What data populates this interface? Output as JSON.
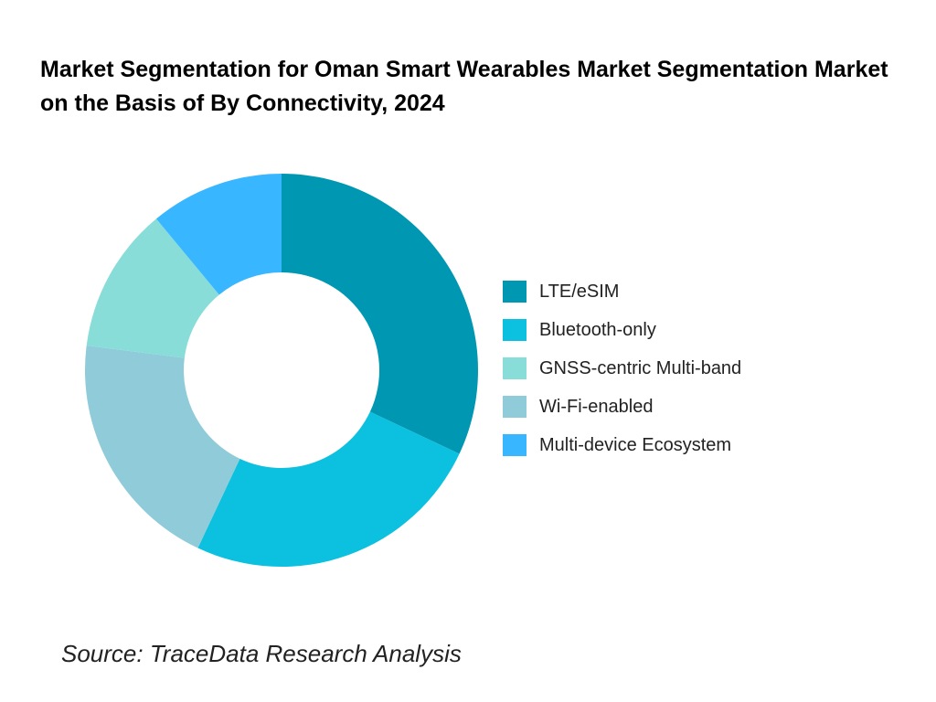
{
  "chart_data": {
    "type": "pie",
    "donut": true,
    "title": "Market Segmentation for Oman Smart Wearables Market Segmentation Market on the Basis of By Connectivity, 2024",
    "slices": [
      {
        "label": "LTE/eSIM",
        "value": 32,
        "color": "#0097B2"
      },
      {
        "label": "Bluetooth-only",
        "value": 25,
        "color": "#0CC0DF"
      },
      {
        "label": "Wi-Fi-enabled",
        "value": 20,
        "color": "#8FCBD8"
      },
      {
        "label": "GNSS-centric Multi-band",
        "value": 12,
        "color": "#88DDD8"
      },
      {
        "label": "Multi-device Ecosystem",
        "value": 11,
        "color": "#38B6FF"
      }
    ],
    "legend": {
      "placement": "right",
      "items": [
        {
          "label": "LTE/eSIM",
          "color": "#0097B2"
        },
        {
          "label": "Bluetooth-only",
          "color": "#0CC0DF"
        },
        {
          "label": "GNSS-centric Multi-band",
          "color": "#88DDD8"
        },
        {
          "label": "Wi-Fi-enabled",
          "color": "#8FCBD8"
        },
        {
          "label": "Multi-device Ecosystem",
          "color": "#38B6FF"
        }
      ]
    }
  },
  "source": "Source: TraceData Research Analysis"
}
